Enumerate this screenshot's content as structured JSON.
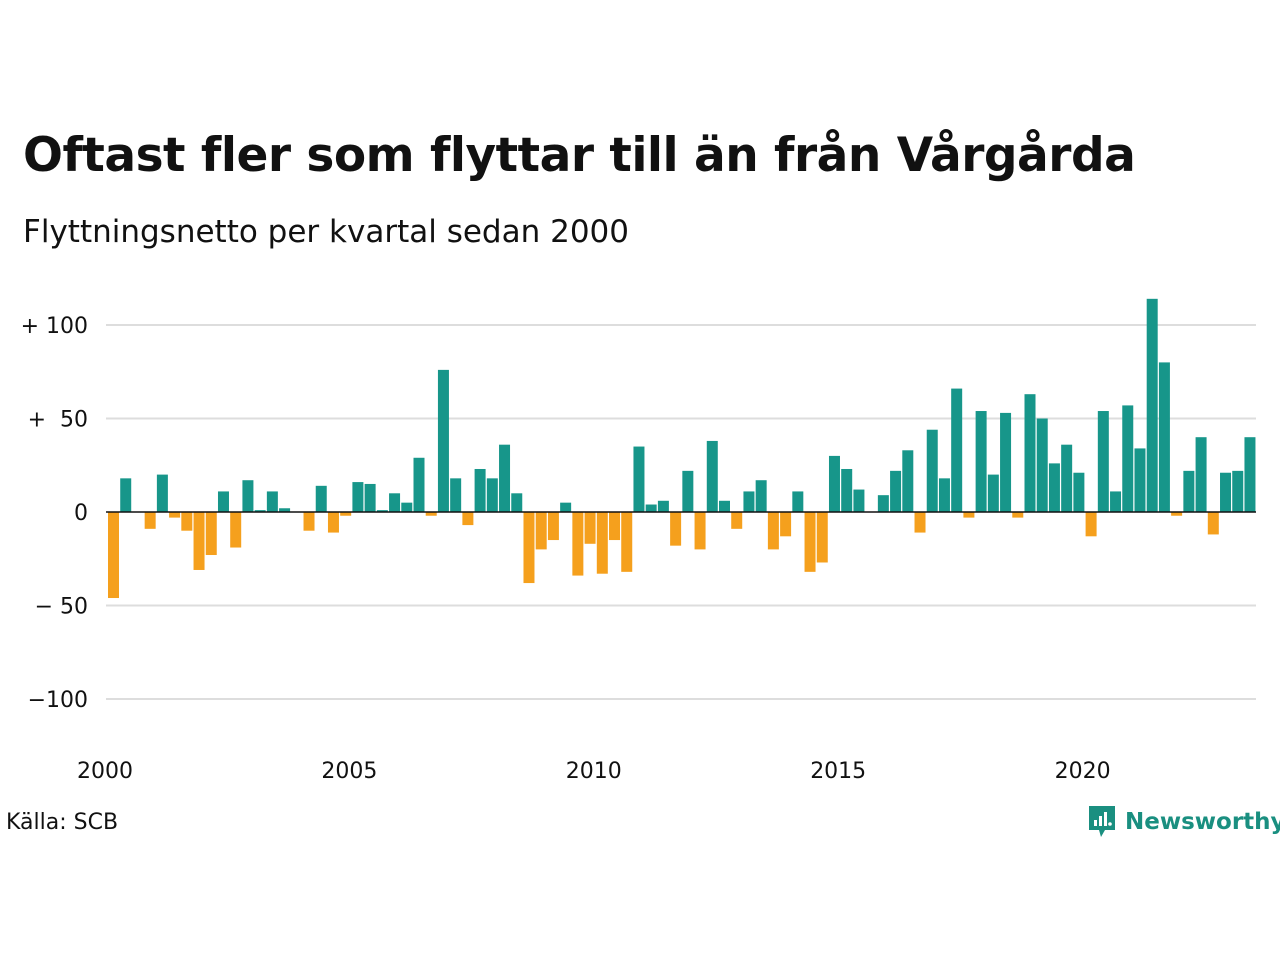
{
  "chart_data": {
    "type": "bar",
    "title": "Oftast fler som flyttar till än från Vårgårda",
    "subtitle": "Flyttningsnetto per kvartal sedan 2000",
    "x_start": 2000,
    "quarters_per_year": 4,
    "x_ticks": [
      "2000",
      "2005",
      "2010",
      "2015",
      "2020"
    ],
    "y_ticks": [
      {
        "value": 100,
        "label": "+ 100"
      },
      {
        "value": 50,
        "label": "+  50"
      },
      {
        "value": 0,
        "label": "0"
      },
      {
        "value": -50,
        "label": "− 50"
      },
      {
        "value": -100,
        "label": "−100"
      }
    ],
    "ylim": [
      -120,
      120
    ],
    "grid": true,
    "positive_color": "#17968a",
    "negative_color": "#f5a01d",
    "values": [
      -46,
      18,
      0,
      -9,
      20,
      -3,
      -10,
      -31,
      -23,
      11,
      -19,
      17,
      1,
      11,
      2,
      0,
      -10,
      14,
      -11,
      -2,
      16,
      15,
      1,
      10,
      5,
      29,
      -2,
      76,
      18,
      -7,
      23,
      18,
      36,
      10,
      -38,
      -20,
      -15,
      5,
      -34,
      -17,
      -33,
      -15,
      -32,
      35,
      4,
      6,
      -18,
      22,
      -20,
      38,
      6,
      -9,
      11,
      17,
      -20,
      -13,
      11,
      -32,
      -27,
      30,
      23,
      12,
      0,
      9,
      22,
      33,
      -11,
      44,
      18,
      66,
      -3,
      54,
      20,
      53,
      -3,
      63,
      50,
      26,
      36,
      21,
      -13,
      54,
      11,
      57,
      34,
      114,
      80,
      -2,
      22,
      40,
      -12,
      21,
      22,
      40
    ]
  },
  "source": "Källa: SCB",
  "brand": {
    "name": "Newsworthy",
    "icon": "newsworthy-logo-icon",
    "color": "#1a8f80"
  }
}
